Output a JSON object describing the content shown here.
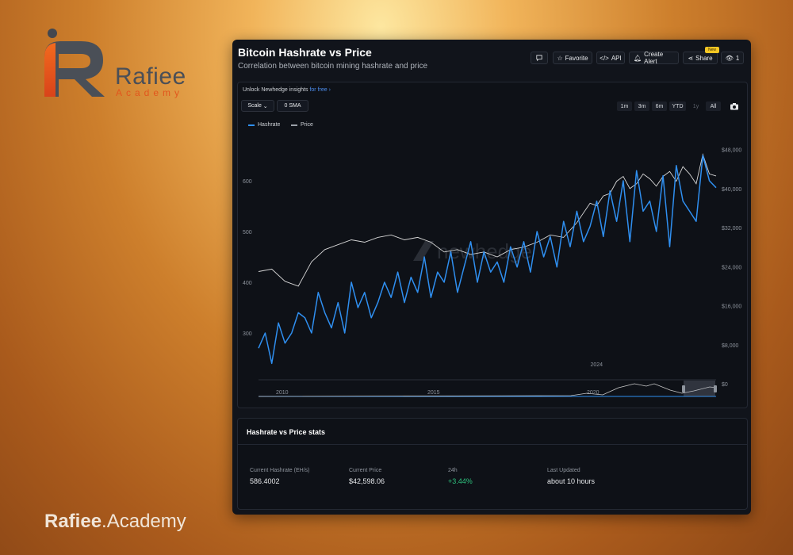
{
  "brand": {
    "name": "Rafiee",
    "sub": "Academy",
    "footer_strong": "Rafiee",
    "footer_rest": ".Academy"
  },
  "panel": {
    "title": "Bitcoin Hashrate vs Price",
    "subtitle": "Correlation between bitcoin mining hashrate and price",
    "toolbar": {
      "comment_icon": "comment-icon",
      "favorite": "Favorite",
      "api": "API",
      "alert": "Create Alert",
      "share": "Share",
      "new_badge": "New",
      "views": "1"
    },
    "unlock_text": "Unlock Newhedge insights",
    "unlock_link": "for free",
    "scale_label": "Scale",
    "sma_label": "0 SMA",
    "ranges": [
      "1m",
      "3m",
      "6m",
      "YTD",
      "1y",
      "All"
    ],
    "watermark": "newhedge"
  },
  "colors": {
    "hashrate": "#2f8ff0",
    "price": "#d6d6d6",
    "positive": "#2ec27e",
    "panel": "#11141b",
    "accent": "#e2561d"
  },
  "chart_data": {
    "type": "line",
    "title": "Bitcoin Hashrate vs Price",
    "series": [
      {
        "name": "Hashrate",
        "axis": "left",
        "color": "#2f8ff0",
        "x": [
          2021.45,
          2021.5,
          2021.55,
          2021.6,
          2021.65,
          2021.7,
          2021.75,
          2021.8,
          2021.85,
          2021.9,
          2021.95,
          2022.0,
          2022.05,
          2022.1,
          2022.15,
          2022.2,
          2022.25,
          2022.3,
          2022.35,
          2022.4,
          2022.45,
          2022.5,
          2022.55,
          2022.6,
          2022.65,
          2022.7,
          2022.75,
          2022.8,
          2022.85,
          2022.9,
          2022.95,
          2023.0,
          2023.05,
          2023.1,
          2023.15,
          2023.2,
          2023.25,
          2023.3,
          2023.35,
          2023.4,
          2023.45,
          2023.5,
          2023.55,
          2023.6,
          2023.65,
          2023.7,
          2023.75,
          2023.8,
          2023.85,
          2023.9,
          2023.95,
          2024.0,
          2024.05,
          2024.1,
          2024.15,
          2024.2,
          2024.25,
          2024.3,
          2024.35,
          2024.4,
          2024.45,
          2024.5,
          2024.55,
          2024.6,
          2024.65,
          2024.7,
          2024.75,
          2024.8,
          2024.85,
          2024.9
        ],
        "values": [
          270,
          300,
          240,
          320,
          280,
          300,
          340,
          330,
          300,
          380,
          340,
          310,
          360,
          300,
          400,
          350,
          380,
          330,
          360,
          400,
          370,
          420,
          360,
          410,
          380,
          450,
          370,
          420,
          400,
          460,
          380,
          430,
          480,
          400,
          460,
          420,
          440,
          400,
          470,
          430,
          480,
          420,
          500,
          450,
          490,
          430,
          520,
          470,
          540,
          480,
          510,
          560,
          490,
          580,
          520,
          600,
          480,
          620,
          540,
          560,
          500,
          610,
          470,
          630,
          560,
          540,
          520,
          650,
          600,
          586.4
        ]
      },
      {
        "name": "Price",
        "axis": "right",
        "color": "#d6d6d6",
        "x": [
          2021.45,
          2021.55,
          2021.65,
          2021.75,
          2021.85,
          2021.95,
          2022.05,
          2022.15,
          2022.25,
          2022.35,
          2022.45,
          2022.55,
          2022.65,
          2022.75,
          2022.85,
          2022.95,
          2023.05,
          2023.15,
          2023.25,
          2023.35,
          2023.45,
          2023.55,
          2023.65,
          2023.75,
          2023.85,
          2023.95,
          2024.0,
          2024.05,
          2024.1,
          2024.15,
          2024.2,
          2024.25,
          2024.3,
          2024.35,
          2024.4,
          2024.45,
          2024.5,
          2024.55,
          2024.6,
          2024.65,
          2024.7,
          2024.75,
          2024.8,
          2024.85,
          2024.9
        ],
        "values": [
          23000,
          23500,
          21000,
          20000,
          25000,
          27500,
          28500,
          29500,
          29000,
          30000,
          30500,
          29500,
          30000,
          29000,
          27000,
          27500,
          26500,
          27000,
          26000,
          27500,
          28000,
          29000,
          30500,
          30000,
          33000,
          37000,
          36500,
          38500,
          39000,
          41500,
          42500,
          40000,
          41000,
          43000,
          42000,
          40500,
          42500,
          43500,
          41500,
          44500,
          43000,
          41000,
          47000,
          43000,
          42598
        ]
      }
    ],
    "yleft": {
      "ticks": [
        300,
        400,
        500,
        600
      ],
      "lim": [
        200,
        700
      ]
    },
    "yright": {
      "ticks": [
        "$0",
        "$8,000",
        "$16,000",
        "$24,000",
        "$32,000",
        "$40,000",
        "$48,000"
      ],
      "lim": [
        0,
        52000
      ]
    },
    "xlim": [
      2021.45,
      2024.9
    ],
    "x_ticks": [
      "2024"
    ],
    "navigator_ticks": [
      "2010",
      "2015",
      "2020"
    ],
    "legend_position": "top-left",
    "grid": false
  },
  "stats": {
    "title": "Hashrate vs Price stats",
    "items": [
      {
        "label": "Current Hashrate (EH/s)",
        "value": "586.4002"
      },
      {
        "label": "Current Price",
        "value": "$42,598.06"
      },
      {
        "label": "24h",
        "value": "+3.44%"
      },
      {
        "label": "Last Updated",
        "value": "about 10 hours"
      }
    ]
  }
}
